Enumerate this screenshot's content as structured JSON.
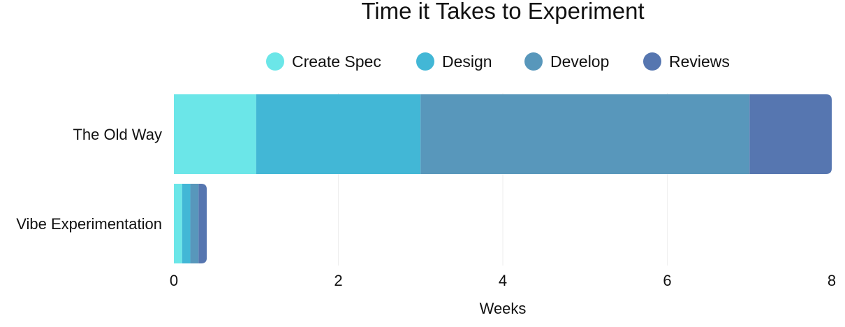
{
  "chart_data": {
    "type": "bar",
    "orientation": "horizontal",
    "stacked": true,
    "title": "Time it Takes to Experiment",
    "xlabel": "Weeks",
    "ylabel": "",
    "xlim": [
      0,
      8
    ],
    "xticks": [
      "0",
      "2",
      "4",
      "6",
      "8"
    ],
    "grid": true,
    "legend_position": "top",
    "categories": [
      "The Old Way",
      "Vibe Experimentation"
    ],
    "series": [
      {
        "name": "Create Spec",
        "color": "#6be6e8",
        "values": [
          1,
          0.1
        ]
      },
      {
        "name": "Design",
        "color": "#42b7d6",
        "values": [
          2,
          0.1
        ]
      },
      {
        "name": "Develop",
        "color": "#5897bb",
        "values": [
          4,
          0.1
        ]
      },
      {
        "name": "Reviews",
        "color": "#5676b0",
        "values": [
          1,
          0.1
        ]
      }
    ]
  }
}
